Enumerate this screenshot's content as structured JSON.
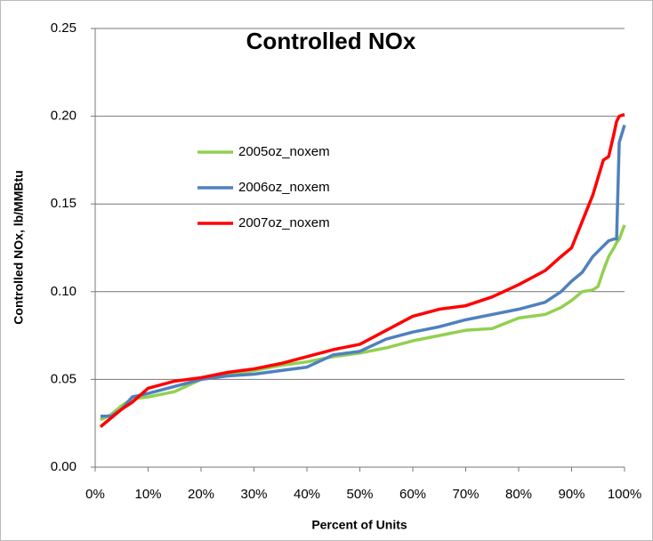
{
  "chart_data": {
    "type": "line",
    "title": "Controlled NOx",
    "x_label": "Percent of Units",
    "y_label": "Controlled  NOx, lb/MMBtu",
    "x": [
      1,
      3,
      5,
      7,
      10,
      15,
      20,
      25,
      30,
      35,
      40,
      45,
      50,
      55,
      60,
      65,
      70,
      75,
      80,
      85,
      88,
      90,
      92,
      94,
      95,
      96,
      97,
      98,
      98.5,
      99,
      100
    ],
    "series": [
      {
        "name": "2005oz_noxem",
        "color": "#92d050",
        "values": [
          0.027,
          0.03,
          0.035,
          0.039,
          0.04,
          0.043,
          0.05,
          0.053,
          0.055,
          0.058,
          0.06,
          0.063,
          0.065,
          0.068,
          0.072,
          0.075,
          0.078,
          0.079,
          0.085,
          0.087,
          0.091,
          0.095,
          0.1,
          0.101,
          0.103,
          0.112,
          0.12,
          0.125,
          0.128,
          0.13,
          0.138
        ]
      },
      {
        "name": "2006oz_noxem",
        "color": "#4f81bd",
        "values": [
          0.029,
          0.029,
          0.033,
          0.04,
          0.042,
          0.046,
          0.05,
          0.052,
          0.053,
          0.055,
          0.057,
          0.064,
          0.066,
          0.073,
          0.077,
          0.08,
          0.084,
          0.087,
          0.09,
          0.094,
          0.1,
          0.106,
          0.111,
          0.12,
          0.123,
          0.126,
          0.129,
          0.13,
          0.13,
          0.185,
          0.195
        ]
      },
      {
        "name": "2007oz_noxem",
        "color": "#ff0000",
        "values": [
          0.023,
          0.028,
          0.033,
          0.037,
          0.045,
          0.049,
          0.051,
          0.054,
          0.056,
          0.059,
          0.063,
          0.067,
          0.07,
          0.078,
          0.086,
          0.09,
          0.092,
          0.097,
          0.104,
          0.112,
          0.12,
          0.125,
          0.14,
          0.155,
          0.165,
          0.175,
          0.177,
          0.19,
          0.197,
          0.2,
          0.201
        ]
      }
    ],
    "xlim": [
      0,
      100
    ],
    "xticks": [
      {
        "value": 0,
        "label": "0%"
      },
      {
        "value": 10,
        "label": "10%"
      },
      {
        "value": 20,
        "label": "20%"
      },
      {
        "value": 30,
        "label": "30%"
      },
      {
        "value": 40,
        "label": "40%"
      },
      {
        "value": 50,
        "label": "50%"
      },
      {
        "value": 60,
        "label": "60%"
      },
      {
        "value": 70,
        "label": "70%"
      },
      {
        "value": 80,
        "label": "80%"
      },
      {
        "value": 90,
        "label": "90%"
      },
      {
        "value": 100,
        "label": "100%"
      }
    ],
    "ylim": [
      0,
      0.25
    ],
    "yticks": [
      {
        "value": 0,
        "label": "0.00"
      },
      0.05,
      {
        "value": 0.1,
        "label": "0.10"
      },
      0.15,
      {
        "value": 0.2,
        "label": "0.20"
      },
      0.25
    ],
    "grid": true
  }
}
